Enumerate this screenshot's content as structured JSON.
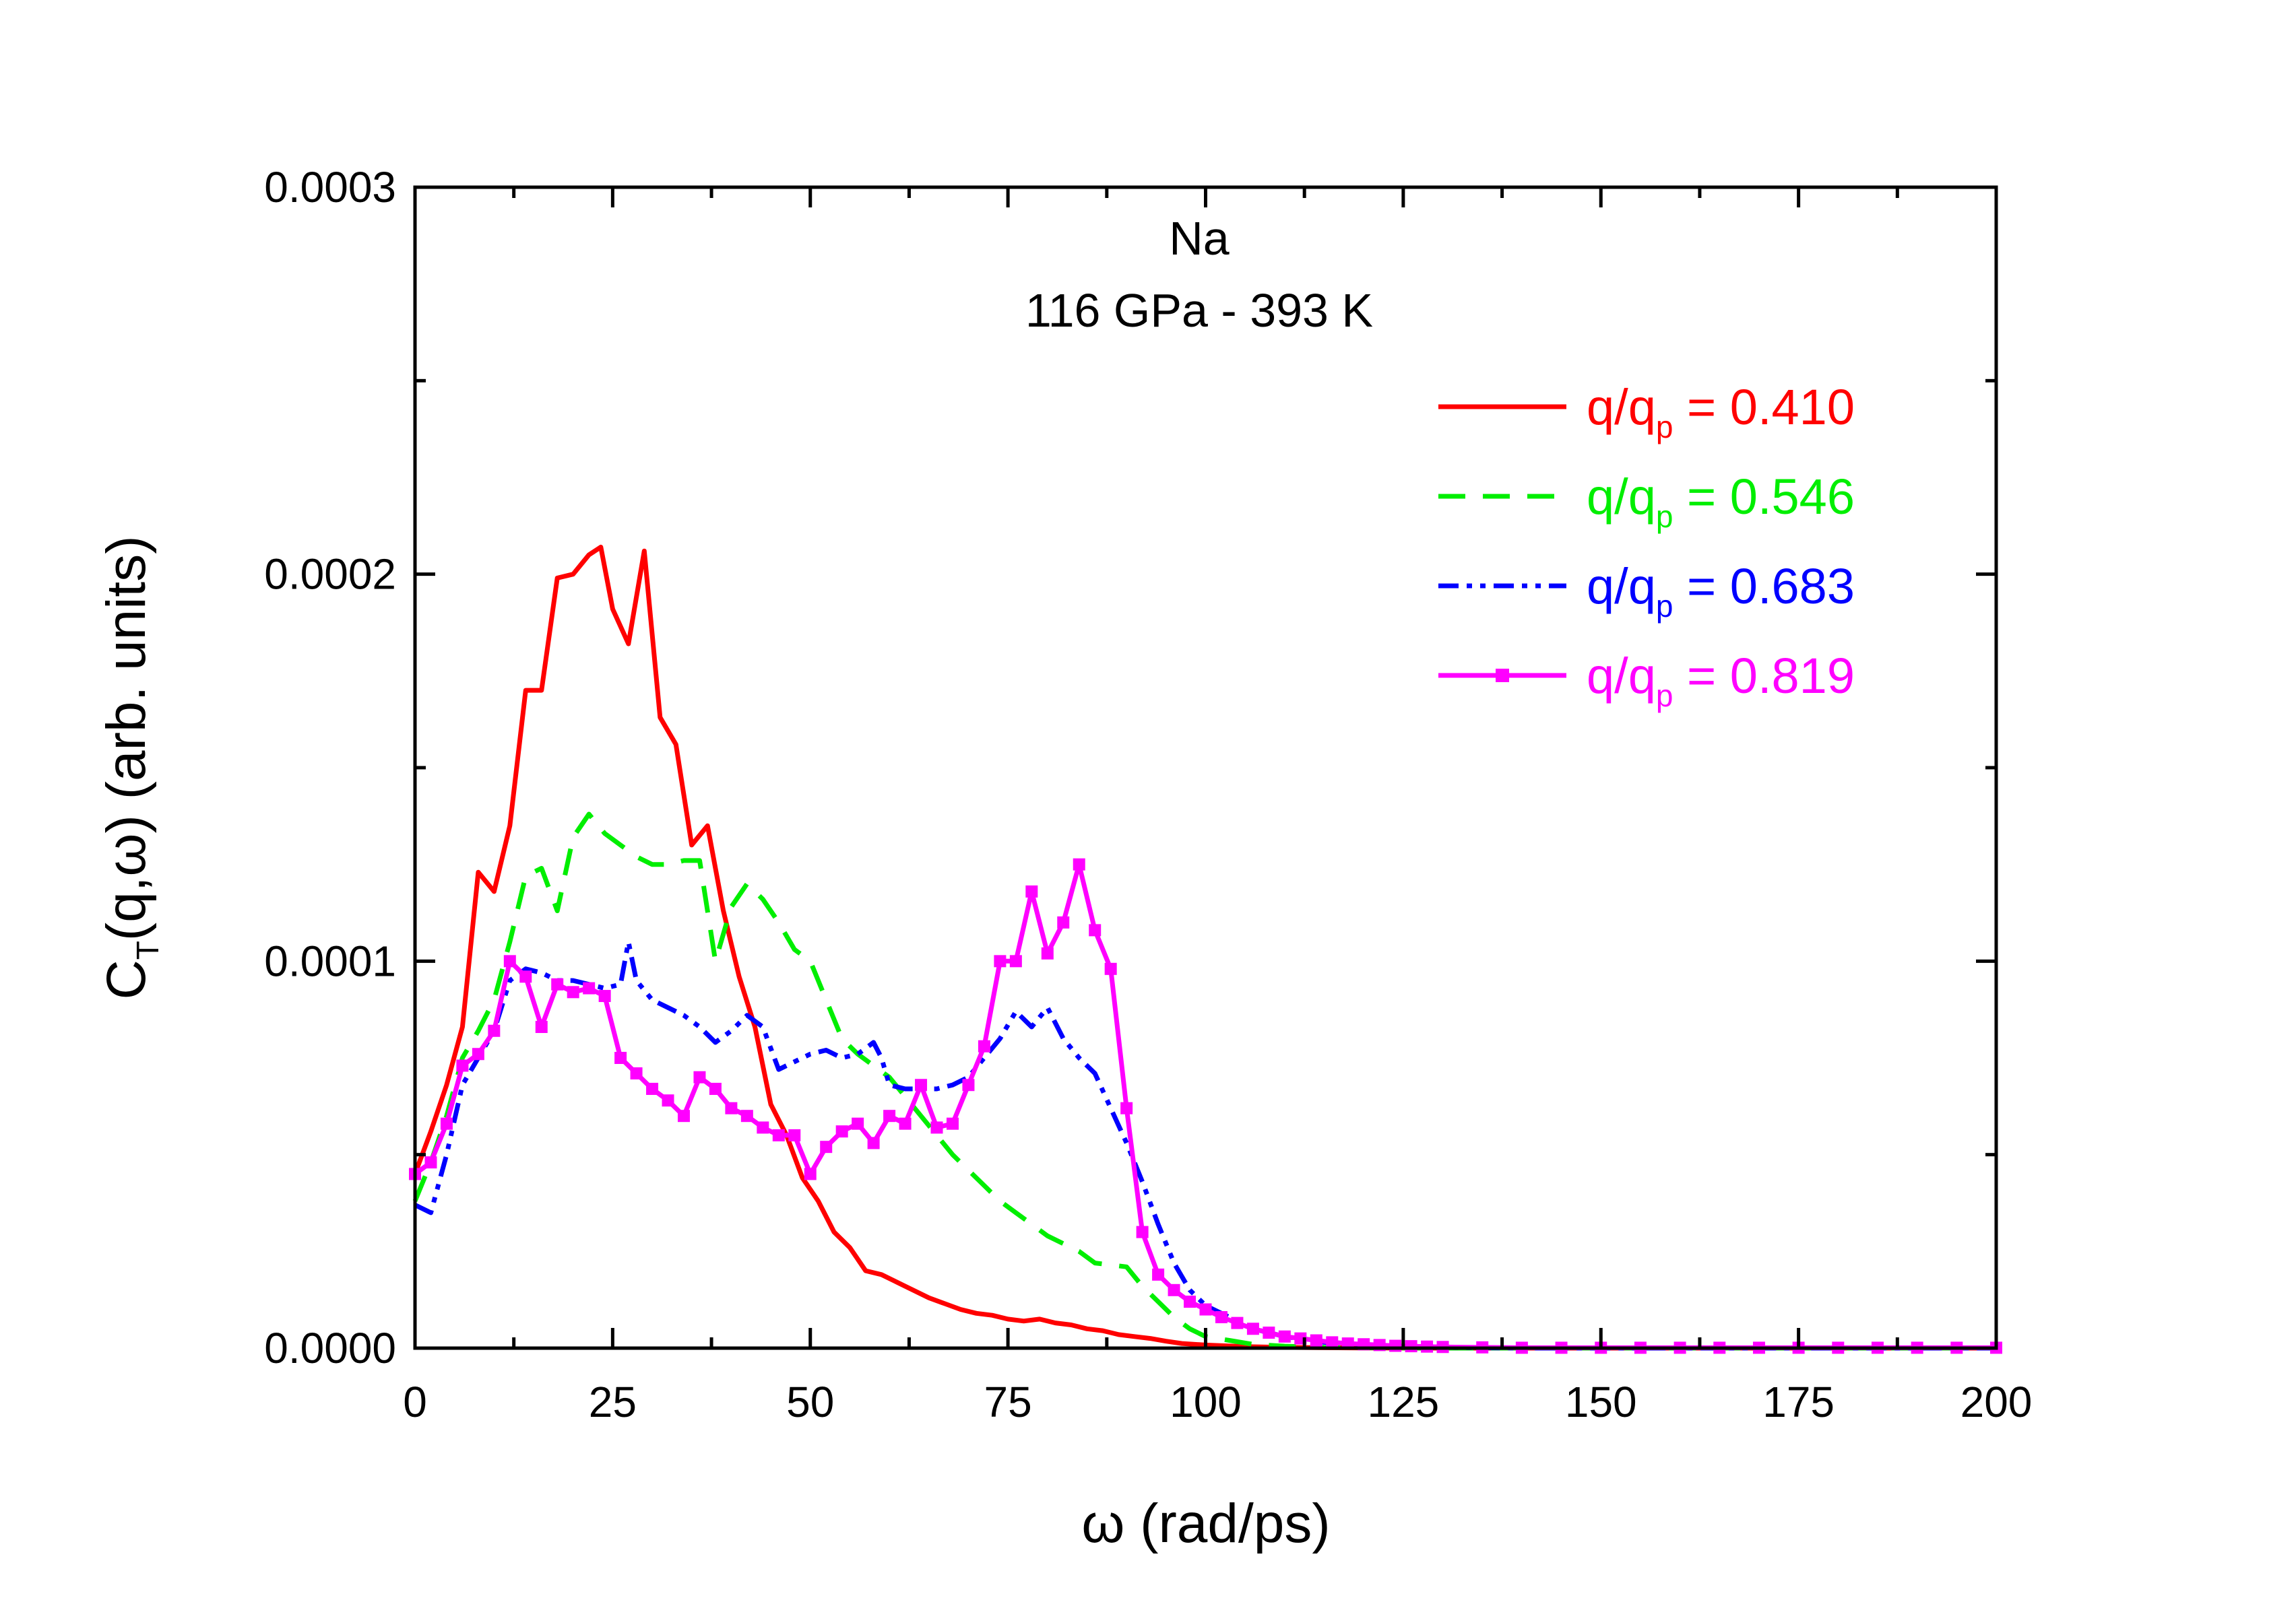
{
  "chart_data": {
    "type": "line",
    "annotation_line1": "Na",
    "annotation_line2": "116 GPa - 393 K",
    "xlabel": "ω (rad/ps)",
    "ylabel_main": "C",
    "ylabel_sub": "T",
    "ylabel_rest": "(q,ω) (arb. units)",
    "xlim": [
      0,
      200
    ],
    "ylim": [
      0,
      0.0003
    ],
    "xticks": [
      0,
      25,
      50,
      75,
      100,
      125,
      150,
      175,
      200
    ],
    "xtick_labels": [
      "0",
      "25",
      "50",
      "75",
      "100",
      "125",
      "150",
      "175",
      "200"
    ],
    "yticks": [
      0,
      0.0001,
      0.0002,
      0.0003
    ],
    "ytick_labels": [
      "0.0000",
      "0.0001",
      "0.0002",
      "0.0003"
    ],
    "legend_position": "top-right",
    "series": [
      {
        "name": "q/q_p = 0.410",
        "legend_main": "q/q",
        "legend_sub": "p",
        "legend_value": " = 0.410",
        "color": "#ff0000",
        "style": "solid",
        "x": [
          0,
          2,
          4,
          6,
          8,
          10,
          12,
          14,
          16,
          18,
          20,
          22,
          23.5,
          25,
          27,
          29,
          31,
          33,
          35,
          37,
          39,
          41,
          43,
          45,
          47,
          49,
          51,
          53,
          55,
          57,
          59,
          61,
          63,
          65,
          67,
          69,
          71,
          73,
          75,
          77,
          79,
          81,
          83,
          85,
          87,
          89,
          91,
          93,
          95,
          97,
          100,
          105,
          110,
          115,
          120,
          130,
          140,
          150,
          160,
          170,
          180,
          190,
          200
        ],
        "y": [
          4.5e-05,
          5.6e-05,
          6.8e-05,
          8.3e-05,
          0.000123,
          0.000118,
          0.000135,
          0.00017,
          0.00017,
          0.000199,
          0.0002,
          0.000205,
          0.000207,
          0.000191,
          0.000182,
          0.000206,
          0.000163,
          0.000156,
          0.00013,
          0.000135,
          0.000113,
          9.6e-05,
          8.3e-05,
          6.3e-05,
          5.5e-05,
          4.4e-05,
          3.8e-05,
          3e-05,
          2.6e-05,
          2e-05,
          1.9e-05,
          1.7e-05,
          1.5e-05,
          1.3e-05,
          1.15e-05,
          1e-05,
          9e-06,
          8.5e-06,
          7.5e-06,
          7e-06,
          7.5e-06,
          6.5e-06,
          6e-06,
          5e-06,
          4.5e-06,
          3.5e-06,
          3e-06,
          2.5e-06,
          1.8e-06,
          1.2e-06,
          8e-07,
          4e-07,
          2e-07,
          1e-07,
          5e-08,
          0,
          0,
          0,
          0,
          0,
          0,
          0,
          0
        ]
      },
      {
        "name": "q/q_p = 0.546",
        "legend_main": "q/q",
        "legend_sub": "p",
        "legend_value": " = 0.546",
        "color": "#00ee00",
        "style": "dashed",
        "x": [
          0,
          2,
          4,
          6,
          8,
          10,
          12,
          14,
          16,
          18,
          20,
          22,
          24,
          26,
          28,
          30,
          32,
          34,
          36,
          38,
          40,
          42,
          44,
          46,
          48,
          50,
          52,
          54,
          56,
          58,
          60,
          62,
          64,
          66,
          68,
          70,
          72,
          74,
          76,
          78,
          80,
          82,
          84,
          86,
          88,
          90,
          92,
          94,
          96,
          98,
          100,
          103,
          106,
          110,
          115,
          120,
          130,
          140,
          150,
          160,
          170,
          180,
          190,
          200
        ],
        "y": [
          3.8e-05,
          4.8e-05,
          6e-05,
          7.5e-05,
          8.2e-05,
          9e-05,
          0.000105,
          0.000122,
          0.000124,
          0.000113,
          0.000132,
          0.000138,
          0.000133,
          0.00013,
          0.000127,
          0.000125,
          0.000125,
          0.000126,
          0.000126,
          0.0001,
          0.000114,
          0.00012,
          0.000116,
          0.00011,
          0.000103,
          0.0001,
          9e-05,
          8e-05,
          7.6e-05,
          7.3e-05,
          7e-05,
          6.5e-05,
          6e-05,
          5.5e-05,
          5e-05,
          4.6e-05,
          4.2e-05,
          3.8e-05,
          3.5e-05,
          3.2e-05,
          2.9e-05,
          2.7e-05,
          2.5e-05,
          2.2e-05,
          2.15e-05,
          2.1e-05,
          1.6e-05,
          1.2e-05,
          8e-06,
          5e-06,
          3e-06,
          2e-06,
          1e-06,
          5e-07,
          2e-07,
          1e-07,
          0,
          0,
          0,
          0,
          0,
          0,
          0,
          0
        ]
      },
      {
        "name": "q/q_p = 0.683",
        "legend_main": "q/q",
        "legend_sub": "p",
        "legend_value": " = 0.683",
        "color": "#0000ff",
        "style": "dashdotdot",
        "x": [
          0,
          2,
          4,
          6,
          8,
          10,
          12,
          14,
          16,
          18,
          20,
          22,
          24,
          26,
          27,
          28,
          30,
          32,
          34,
          36,
          38,
          40,
          42,
          44,
          46,
          48,
          50,
          52,
          54,
          56,
          58,
          59,
          60,
          62,
          64,
          66,
          68,
          70,
          72,
          74,
          76,
          78,
          80,
          82,
          84,
          86,
          88,
          90,
          92,
          94,
          96,
          98,
          100,
          103,
          106,
          110,
          115,
          120,
          130,
          140,
          150,
          160,
          170,
          180,
          190,
          200
        ],
        "y": [
          3.7e-05,
          3.5e-05,
          5e-05,
          6.8e-05,
          7.5e-05,
          8.2e-05,
          9.5e-05,
          9.8e-05,
          9.7e-05,
          9.5e-05,
          9.5e-05,
          9.4e-05,
          9.3e-05,
          9.4e-05,
          0.000105,
          9.5e-05,
          9e-05,
          8.8e-05,
          8.6e-05,
          8.3e-05,
          7.9e-05,
          8.2e-05,
          8.6e-05,
          8.3e-05,
          7.2e-05,
          7.4e-05,
          7.6e-05,
          7.7e-05,
          7.5e-05,
          7.6e-05,
          7.9e-05,
          7.5e-05,
          6.8e-05,
          6.7e-05,
          6.7e-05,
          6.7e-05,
          6.8e-05,
          7e-05,
          7.5e-05,
          8e-05,
          8.7e-05,
          8.3e-05,
          8.8e-05,
          8e-05,
          7.5e-05,
          7.1e-05,
          6.2e-05,
          5.3e-05,
          4.3e-05,
          3.2e-05,
          2.2e-05,
          1.5e-05,
          1.1e-05,
          8e-06,
          5e-06,
          3e-06,
          1.5e-06,
          8e-07,
          2e-07,
          0,
          0,
          0,
          0,
          0,
          0,
          0
        ]
      },
      {
        "name": "q/q_p = 0.819",
        "legend_main": "q/q",
        "legend_sub": "p",
        "legend_value": " = 0.819",
        "color": "#ff00ff",
        "style": "solid-square-markers",
        "x": [
          0,
          2,
          4,
          6,
          8,
          10,
          12,
          14,
          16,
          18,
          20,
          22,
          24,
          26,
          28,
          30,
          32,
          34,
          36,
          38,
          40,
          42,
          44,
          46,
          48,
          50,
          52,
          54,
          56,
          58,
          60,
          62,
          64,
          66,
          68,
          70,
          72,
          74,
          76,
          78,
          80,
          82,
          84,
          86,
          88,
          90,
          92,
          94,
          96,
          98,
          100,
          102,
          104,
          106,
          108,
          110,
          112,
          114,
          116,
          118,
          120,
          122,
          124,
          126,
          128,
          130,
          135,
          140,
          145,
          150,
          155,
          160,
          165,
          170,
          175,
          180,
          185,
          190,
          195,
          200
        ],
        "y": [
          4.5e-05,
          4.8e-05,
          5.8e-05,
          7.3e-05,
          7.6e-05,
          8.2e-05,
          0.0001,
          9.6e-05,
          8.3e-05,
          9.4e-05,
          9.2e-05,
          9.3e-05,
          9.1e-05,
          7.5e-05,
          7.1e-05,
          6.7e-05,
          6.4e-05,
          6e-05,
          7e-05,
          6.7e-05,
          6.2e-05,
          6e-05,
          5.7e-05,
          5.5e-05,
          5.5e-05,
          4.5e-05,
          5.2e-05,
          5.6e-05,
          5.8e-05,
          5.3e-05,
          6e-05,
          5.8e-05,
          6.8e-05,
          5.7e-05,
          5.8e-05,
          6.8e-05,
          7.8e-05,
          0.0001,
          0.0001,
          0.000118,
          0.000102,
          0.00011,
          0.000125,
          0.000108,
          9.8e-05,
          6.2e-05,
          3e-05,
          1.9e-05,
          1.5e-05,
          1.2e-05,
          1e-05,
          8e-06,
          6.5e-06,
          5e-06,
          4e-06,
          3e-06,
          2.5e-06,
          2e-06,
          1.5e-06,
          1.2e-06,
          1e-06,
          8e-07,
          6e-07,
          5e-07,
          4e-07,
          3e-07,
          2e-07,
          1e-07,
          1e-07,
          1e-07,
          1e-07,
          1e-07,
          1e-07,
          1e-07,
          1e-07,
          1e-07,
          1e-07,
          1e-07,
          1e-07,
          1e-07
        ]
      }
    ]
  }
}
